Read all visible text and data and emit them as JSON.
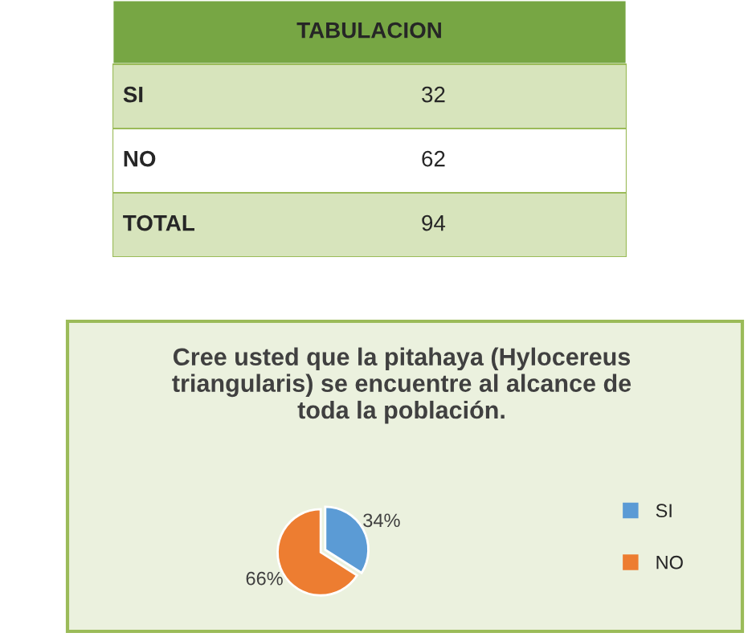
{
  "chart_data": [
    {
      "type": "other",
      "title": "TABULACION",
      "annotations": [
        "SI",
        "32",
        "NO",
        "62",
        "TOTAL",
        "94"
      ]
    },
    {
      "type": "pie",
      "title": "Cree usted que la pitahaya (Hylocereus\ntriangularis) se encuentre al alcance de\ntoda la población.",
      "categories": [
        "SI",
        "NO"
      ],
      "values": [
        34,
        66
      ],
      "colors": [
        "#5b9bd5",
        "#ed7d31"
      ],
      "value_labels": [
        "34%",
        "66%"
      ],
      "legend": "right"
    }
  ]
}
